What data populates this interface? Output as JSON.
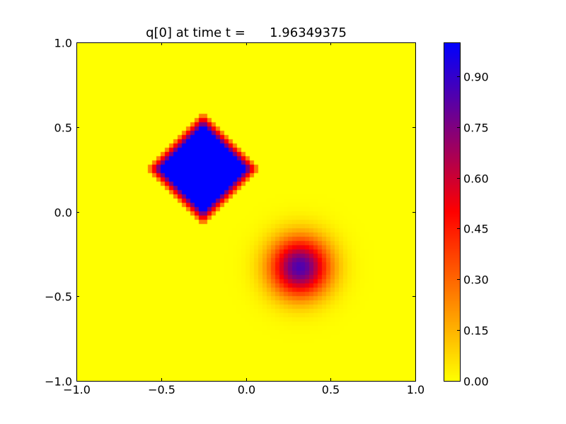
{
  "chart_data": {
    "type": "heatmap",
    "title": "q[0] at time t =      1.96349375",
    "xlim": [
      -1.0,
      1.0
    ],
    "ylim": [
      -1.0,
      1.0
    ],
    "x_ticks": [
      "−1.0",
      "−0.5",
      "0.0",
      "0.5",
      "1.0"
    ],
    "x_tick_values": [
      -1.0,
      -0.5,
      0.0,
      0.5,
      1.0
    ],
    "y_ticks": [
      "−1.0",
      "−0.5",
      "0.0",
      "0.5",
      "1.0"
    ],
    "y_tick_values": [
      -1.0,
      -0.5,
      0.0,
      0.5,
      1.0
    ],
    "colorbar": {
      "range": [
        0.0,
        1.0
      ],
      "ticks": [
        "0.00",
        "0.15",
        "0.30",
        "0.45",
        "0.60",
        "0.75",
        "0.90"
      ],
      "tick_values": [
        0.0,
        0.15,
        0.3,
        0.45,
        0.6,
        0.75,
        0.9
      ],
      "colormap_stops": [
        {
          "value": 0.0,
          "color": "#ffff00"
        },
        {
          "value": 0.5,
          "color": "#ff0000"
        },
        {
          "value": 1.0,
          "color": "#0000ff"
        }
      ]
    },
    "grid_resolution": 80,
    "features": [
      {
        "shape": "square-rotated-45",
        "center": [
          -0.25,
          0.25
        ],
        "half_diagonal": 0.3,
        "peak_value": 1.0,
        "edge_smoothing": 0.05
      },
      {
        "shape": "gaussian-disk",
        "center": [
          0.32,
          -0.33
        ],
        "peak_value": 0.85,
        "sigma": 0.12
      }
    ]
  }
}
